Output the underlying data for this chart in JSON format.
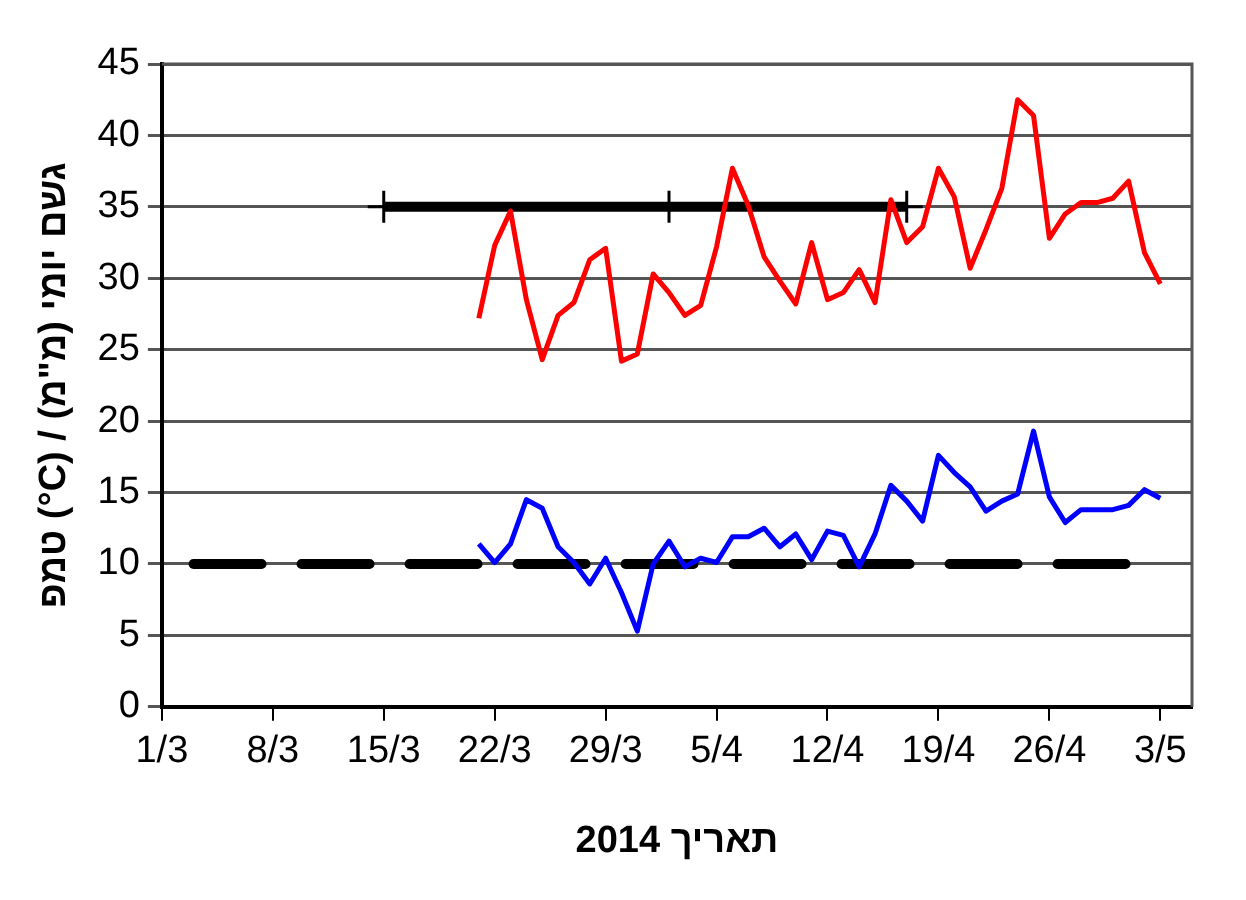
{
  "chart_data": {
    "type": "line",
    "xlabel": "תאריך 2014",
    "ylabel": "טמפ (°C) / גשם יומי (מ\"מ)",
    "xlim": [
      "2014-03-01",
      "2014-05-05"
    ],
    "xticks": [
      {
        "value": "2014-03-01",
        "label": "1/3"
      },
      {
        "value": "2014-03-08",
        "label": "8/3"
      },
      {
        "value": "2014-03-15",
        "label": "15/3"
      },
      {
        "value": "2014-03-22",
        "label": "22/3"
      },
      {
        "value": "2014-03-29",
        "label": "29/3"
      },
      {
        "value": "2014-04-05",
        "label": "5/4"
      },
      {
        "value": "2014-04-12",
        "label": "12/4"
      },
      {
        "value": "2014-04-19",
        "label": "19/4"
      },
      {
        "value": "2014-04-26",
        "label": "26/4"
      },
      {
        "value": "2014-05-03",
        "label": "3/5"
      }
    ],
    "ylim": [
      0,
      45
    ],
    "yticks": [
      0,
      5,
      10,
      15,
      20,
      25,
      30,
      35,
      40,
      45
    ],
    "grid": "y",
    "legend": false,
    "marker": "none",
    "line_style": "solid",
    "x": [
      "2014-03-21",
      "2014-03-22",
      "2014-03-23",
      "2014-03-24",
      "2014-03-25",
      "2014-03-26",
      "2014-03-27",
      "2014-03-28",
      "2014-03-29",
      "2014-03-30",
      "2014-03-31",
      "2014-04-01",
      "2014-04-02",
      "2014-04-03",
      "2014-04-04",
      "2014-04-05",
      "2014-04-06",
      "2014-04-07",
      "2014-04-08",
      "2014-04-09",
      "2014-04-10",
      "2014-04-11",
      "2014-04-12",
      "2014-04-13",
      "2014-04-14",
      "2014-04-15",
      "2014-04-16",
      "2014-04-17",
      "2014-04-18",
      "2014-04-19",
      "2014-04-20",
      "2014-04-21",
      "2014-04-22",
      "2014-04-23",
      "2014-04-24",
      "2014-04-25",
      "2014-04-26",
      "2014-04-27",
      "2014-04-28",
      "2014-04-29",
      "2014-04-30",
      "2014-05-01",
      "2014-05-02",
      "2014-05-03"
    ],
    "series": [
      {
        "color": "#ff0000",
        "values": [
          27.2,
          32.3,
          34.7,
          28.5,
          24.3,
          27.4,
          28.3,
          31.3,
          32.1,
          24.2,
          24.7,
          30.3,
          29.0,
          27.4,
          28.1,
          32.2,
          37.7,
          35.1,
          31.5,
          29.8,
          28.2,
          32.5,
          28.5,
          29.0,
          30.6,
          28.3,
          35.5,
          32.5,
          33.6,
          37.7,
          35.7,
          30.7,
          33.4,
          36.3,
          42.5,
          41.4,
          32.8,
          34.5,
          35.3,
          35.3,
          35.6,
          36.8,
          31.8,
          29.6
        ]
      },
      {
        "color": "#0000ff",
        "values": [
          11.4,
          10.1,
          11.4,
          14.5,
          13.9,
          11.2,
          10.1,
          8.6,
          10.4,
          8.0,
          5.3,
          10.0,
          11.6,
          9.8,
          10.4,
          10.1,
          11.9,
          11.9,
          12.5,
          11.2,
          12.1,
          10.3,
          12.3,
          12.0,
          9.8,
          12.1,
          15.5,
          14.4,
          13.0,
          17.6,
          16.4,
          15.4,
          13.7,
          14.4,
          14.9,
          19.3,
          14.7,
          12.9,
          13.8,
          13.8,
          13.8,
          14.1,
          15.2,
          14.6
        ]
      },
      {
        "type": "line",
        "color": "#000000",
        "x": [
          "2014-03-15",
          "2014-04-02",
          "2014-04-17"
        ],
        "values": [
          35,
          35,
          35
        ],
        "marker": "cross"
      },
      {
        "type": "line",
        "color": "#000000",
        "x": [
          "2014-03-03",
          "2014-05-03"
        ],
        "values": [
          10,
          10
        ],
        "line_style": "dashed"
      }
    ]
  }
}
